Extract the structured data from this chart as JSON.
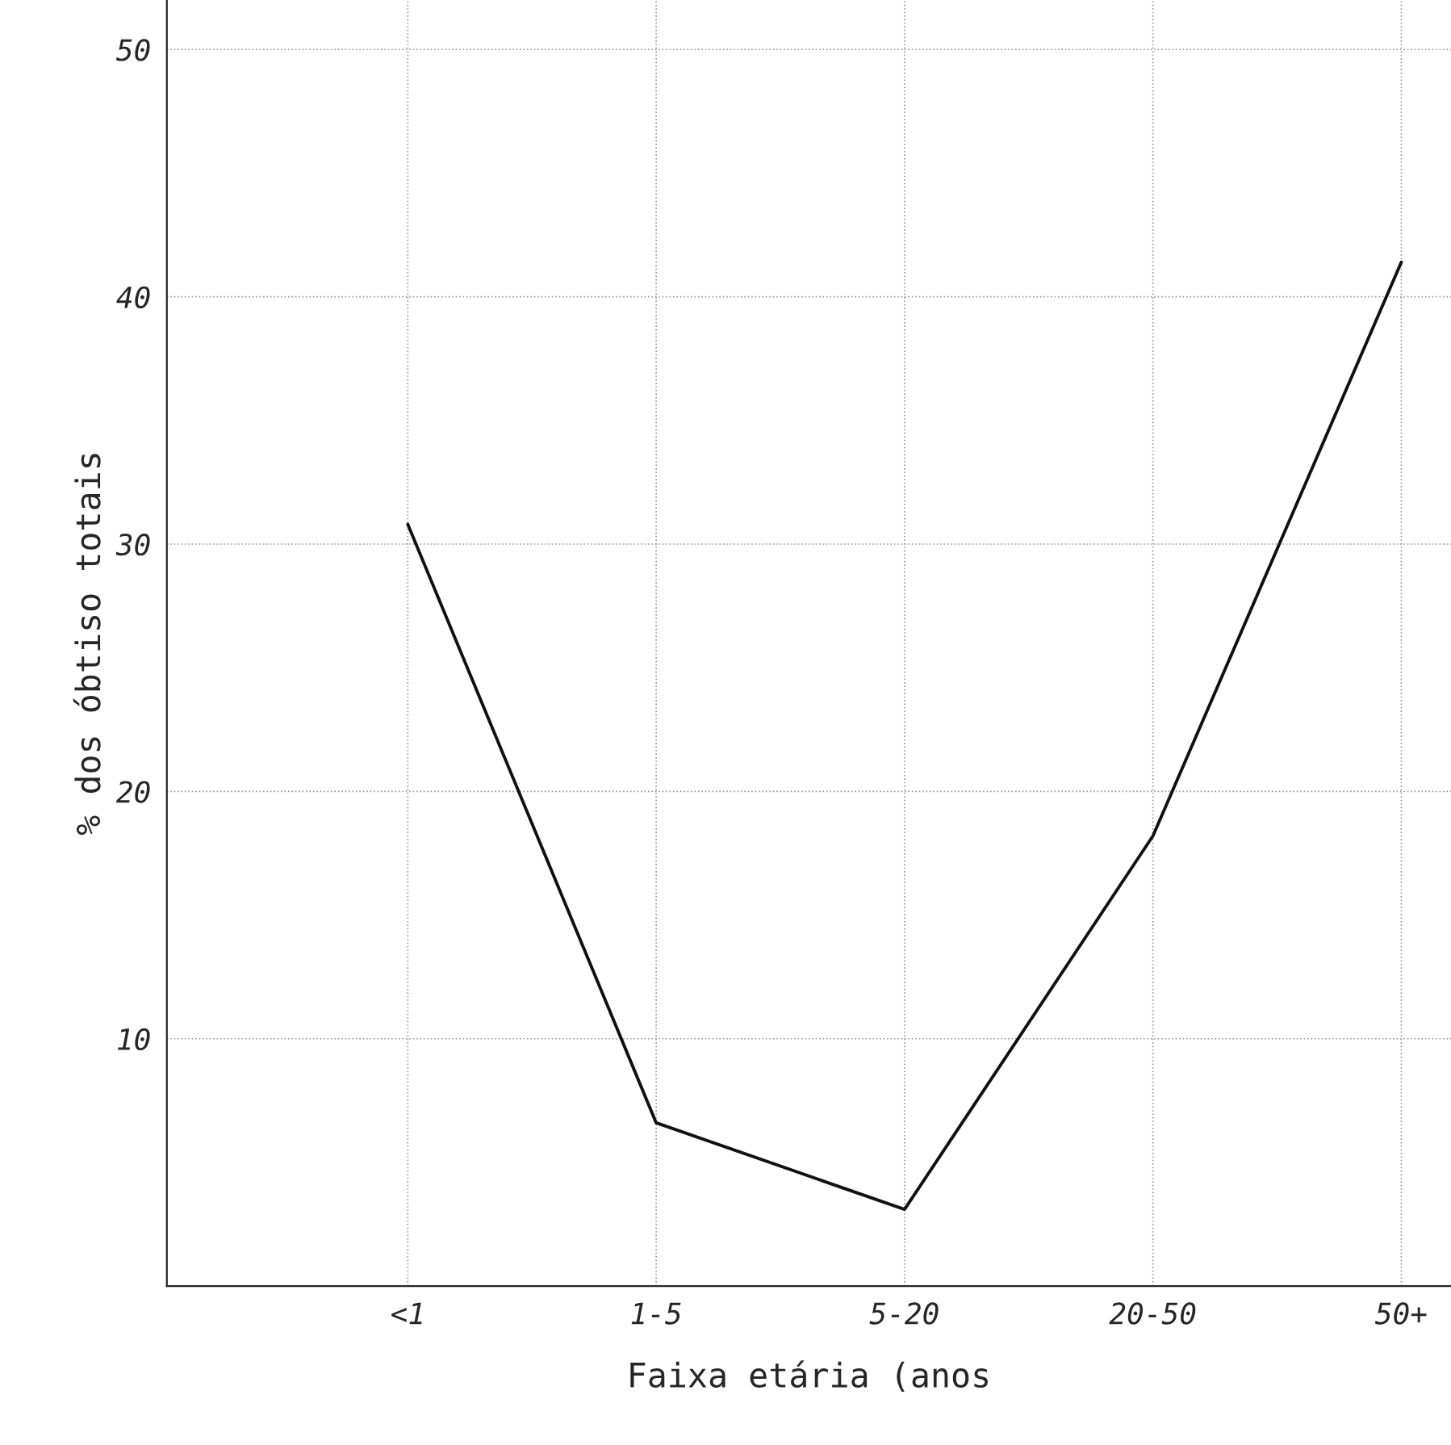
{
  "chart_data": {
    "type": "line",
    "xlabel": "Faixa etária (anos",
    "ylabel": "% dos óbtiso totais",
    "categories": [
      "<1",
      "1-5",
      "5-20",
      "20-50",
      "50+"
    ],
    "values": [
      30.8,
      6.6,
      3.1,
      18.2,
      41.4
    ],
    "color": "#111111",
    "marker": "none",
    "line_style": "solid",
    "ylim": [
      0,
      52
    ],
    "yticks": [
      {
        "value": 0,
        "label": null
      },
      10,
      20,
      30,
      40,
      50
    ],
    "grid": true
  }
}
